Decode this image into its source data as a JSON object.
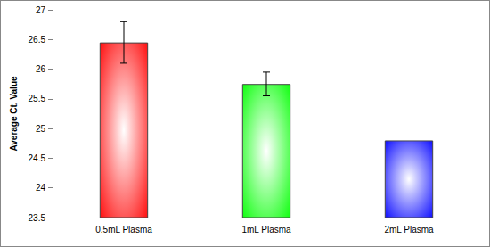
{
  "chart_data": {
    "type": "bar",
    "y_label": "Average Ct. Value",
    "categories": [
      "0.5mL Plasma",
      "1mL Plasma",
      "2mL Plasma"
    ],
    "values": [
      26.45,
      25.75,
      24.8
    ],
    "errors": [
      0.35,
      0.2,
      null
    ],
    "colors": [
      "#ff0000",
      "#00ff00",
      "#0000ff"
    ],
    "ylim": [
      23.5,
      27
    ],
    "yticks": [
      23.5,
      24,
      24.5,
      25,
      25.5,
      26,
      26.5,
      27
    ],
    "grid": false
  }
}
